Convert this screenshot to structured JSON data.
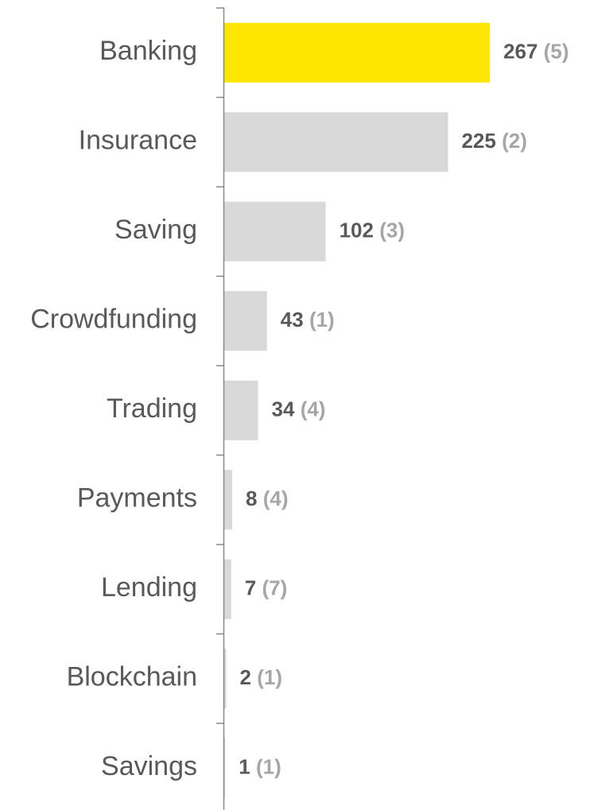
{
  "chart_data": {
    "type": "bar",
    "orientation": "horizontal",
    "categories": [
      "Banking",
      "Insurance",
      "Saving",
      "Crowdfunding",
      "Trading",
      "Payments",
      "Lending",
      "Blockchain",
      "Savings"
    ],
    "values": [
      267,
      225,
      102,
      43,
      34,
      8,
      7,
      2,
      1
    ],
    "secondary_labels": [
      "(5)",
      "(2)",
      "(3)",
      "(1)",
      "(4)",
      "(4)",
      "(7)",
      "(1)",
      "(1)"
    ],
    "colors": [
      "#ffe600",
      "#d9d9d9",
      "#d9d9d9",
      "#d9d9d9",
      "#d9d9d9",
      "#d9d9d9",
      "#d9d9d9",
      "#d9d9d9",
      "#d9d9d9"
    ]
  }
}
